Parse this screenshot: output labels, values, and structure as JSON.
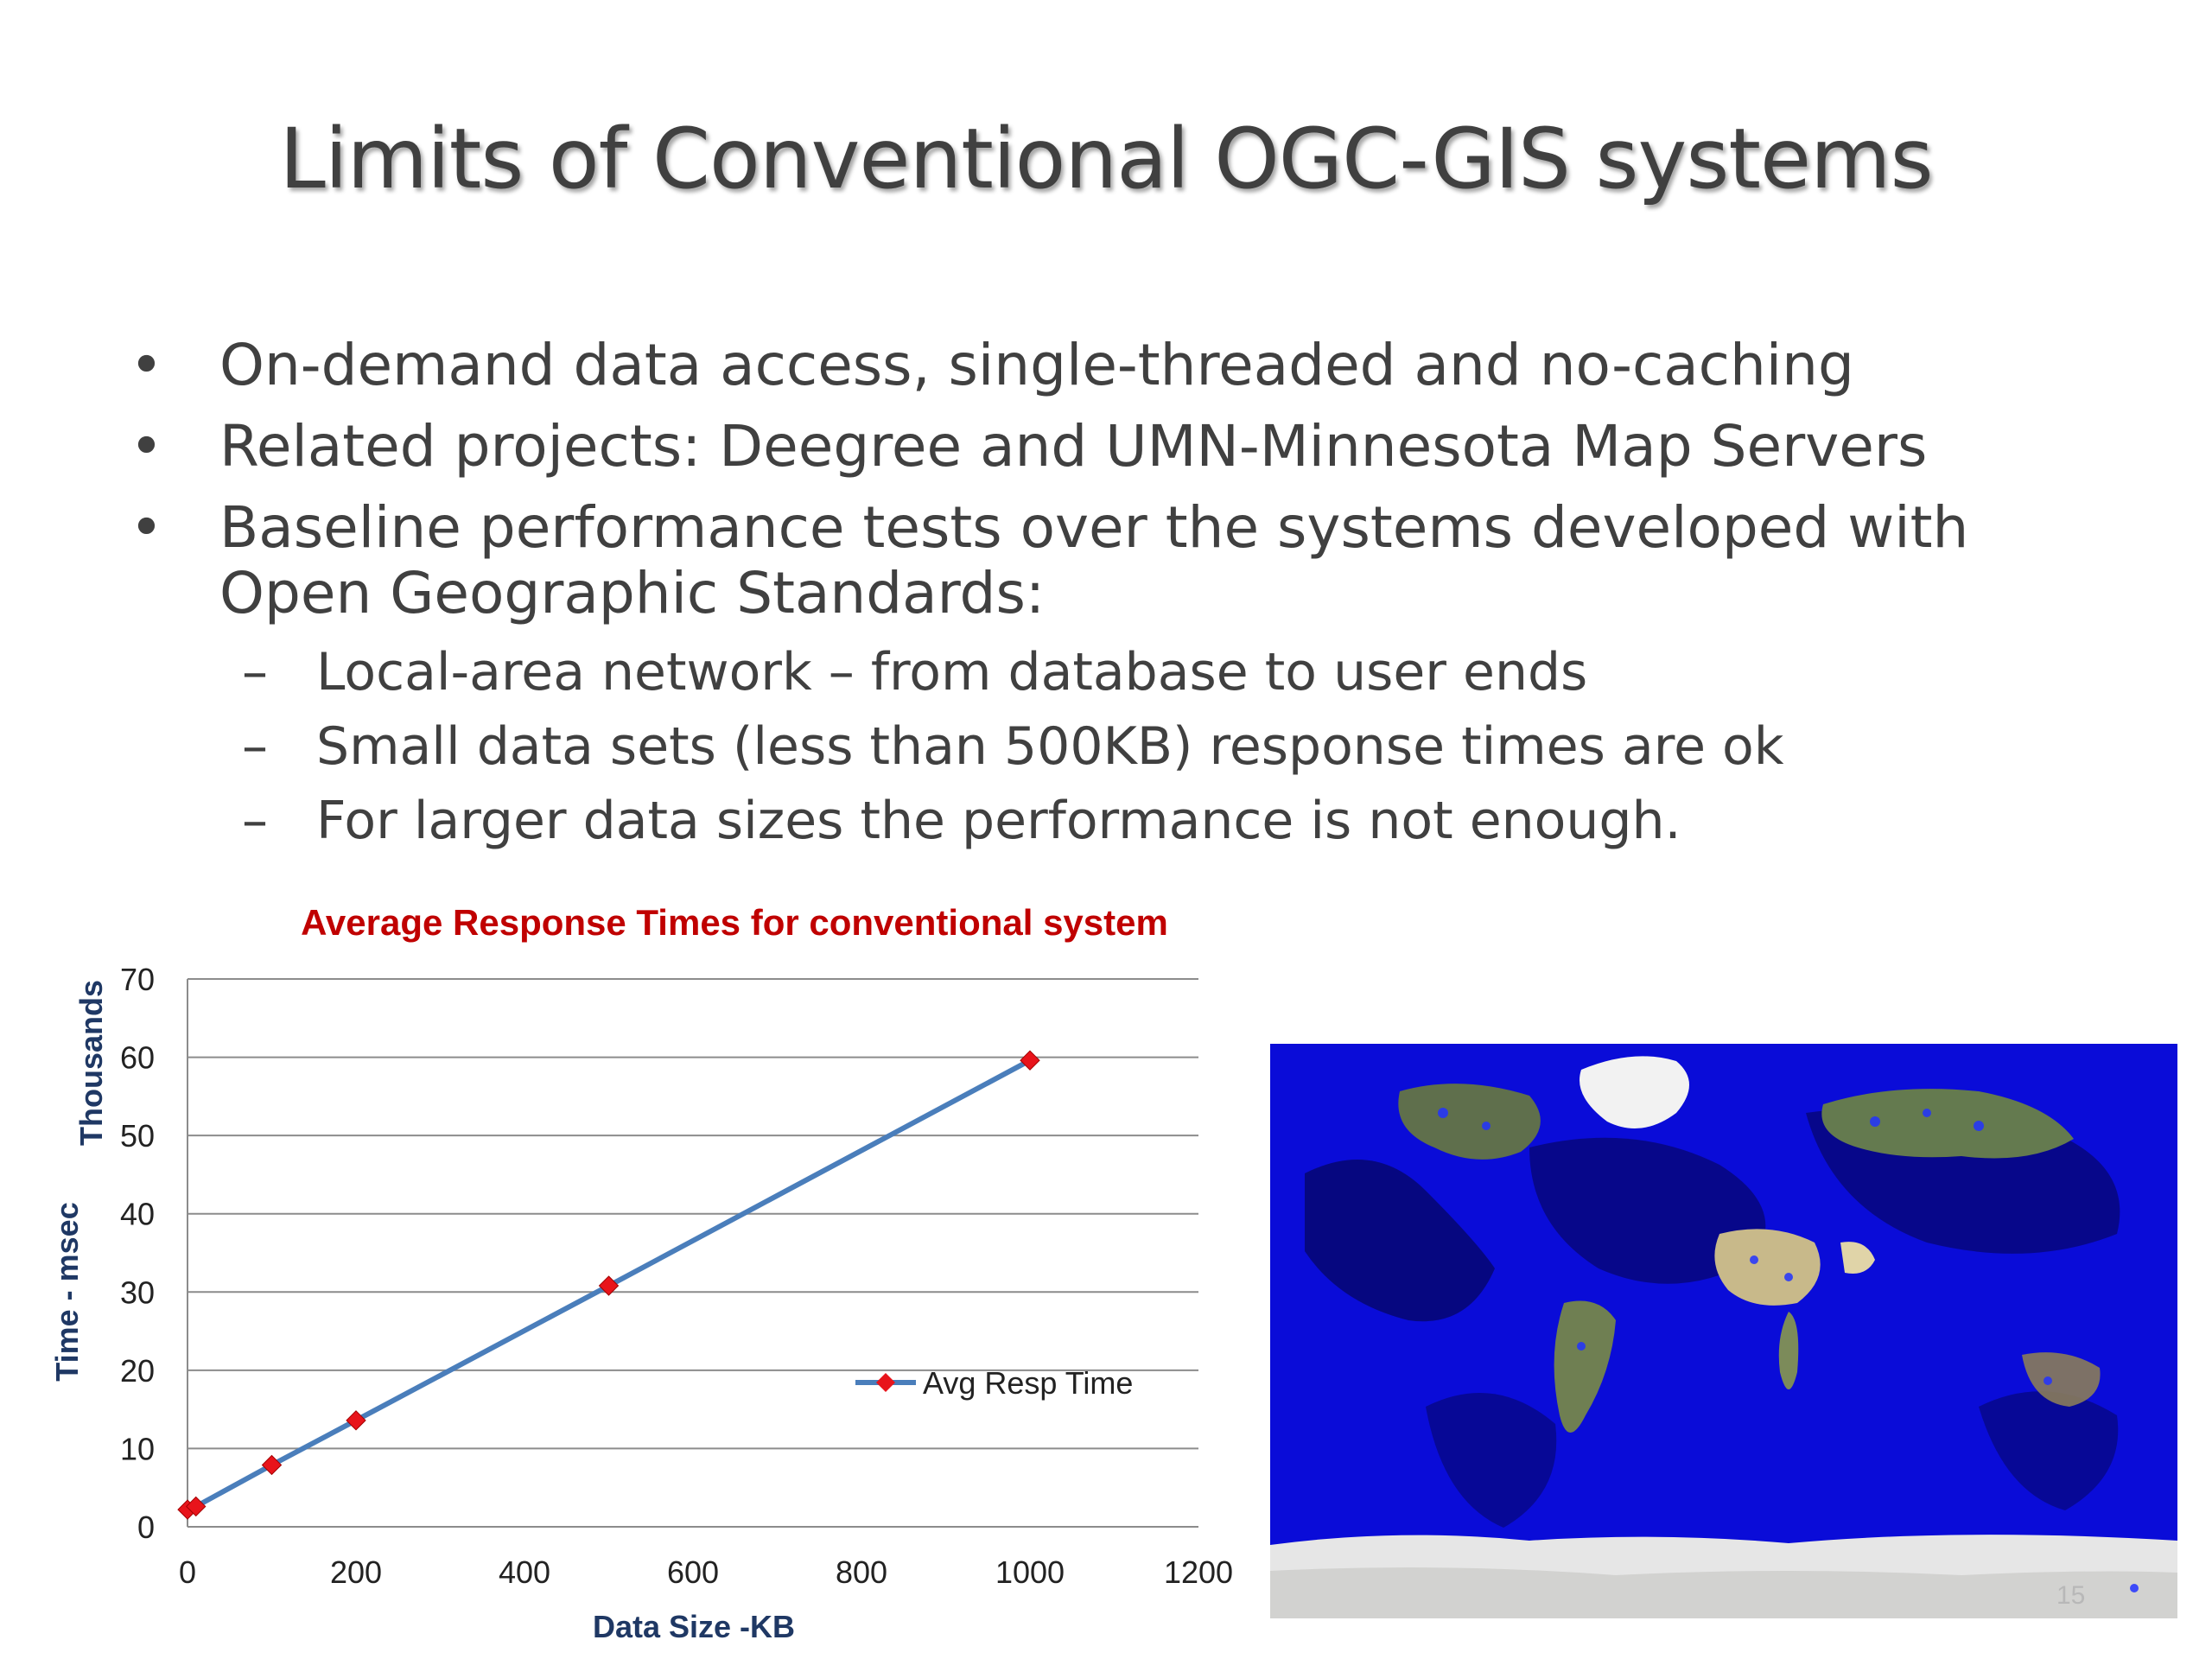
{
  "slide": {
    "title": "Limits of Conventional OGC-GIS systems",
    "page_number": "15"
  },
  "bullets": [
    "On-demand data access, single-threaded and no-caching",
    "Related projects: Deegree and  UMN-Minnesota Map Servers",
    "Baseline performance tests over the systems developed with Open Geographic Standards:"
  ],
  "sub_bullets": [
    "Local-area network – from database to user ends",
    "Small data sets (less than 500KB) response times are ok",
    "For larger data sizes the performance is not enough."
  ],
  "chart_data": {
    "type": "line",
    "title": "Average Response Times for conventional system",
    "xlabel": "Data Size -KB",
    "ylabel": "Time - msec",
    "ylabel_units": "Thousands",
    "xlim": [
      0,
      1200
    ],
    "ylim": [
      0,
      70
    ],
    "xticks": [
      0,
      200,
      400,
      600,
      800,
      1000,
      1200
    ],
    "yticks": [
      0,
      10,
      20,
      30,
      40,
      50,
      60,
      70
    ],
    "grid": "horizontal",
    "legend": "right",
    "series": [
      {
        "name": "Avg Resp Time",
        "x": [
          0,
          10,
          100,
          200,
          500,
          1000
        ],
        "y": [
          2.2,
          2.6,
          7.9,
          13.6,
          30.8,
          59.6
        ]
      }
    ],
    "colors": {
      "line": "#4a7ebb",
      "marker": "#e8141b",
      "title": "#c00000",
      "axis_label": "#1f3864"
    }
  },
  "image": {
    "name": "world-map-image",
    "ocean_color": "#0a0cd8"
  }
}
